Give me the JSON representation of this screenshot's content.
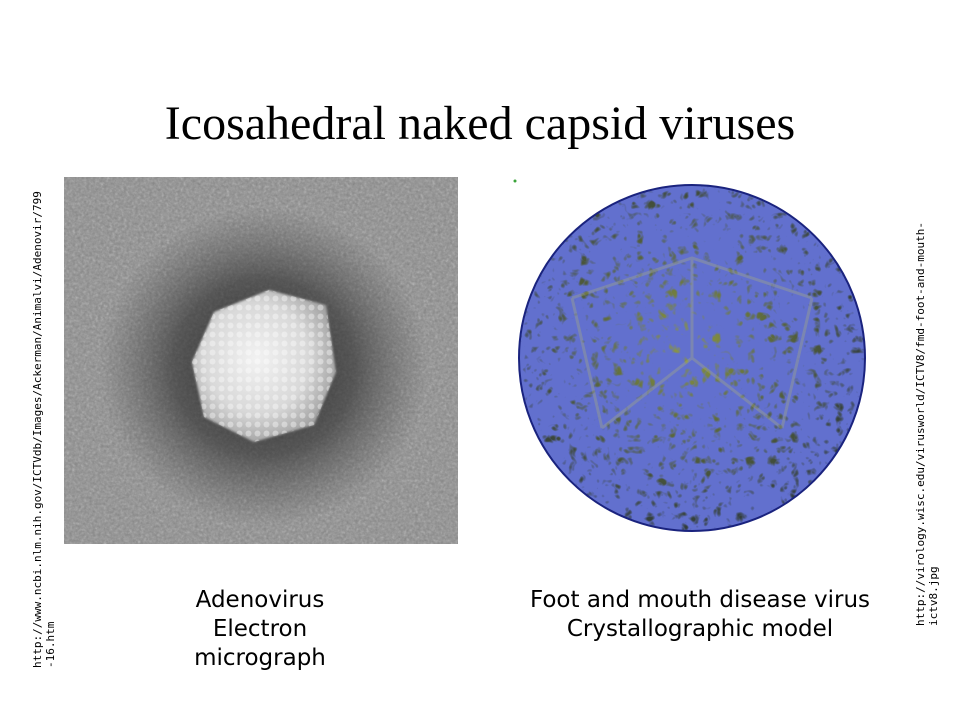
{
  "slide": {
    "title": "Icosahedral naked capsid viruses"
  },
  "left_panel": {
    "caption_lines": [
      "Adenovirus",
      "Electron",
      "micrograph"
    ],
    "source_lines": [
      "http://www.ncbi.nlm.nih.gov/ICTVdb/Images/Ackerman/Animalvi/Adenovir/799",
      "-16.htm"
    ]
  },
  "right_panel": {
    "caption_lines": [
      "Foot and mouth disease virus",
      "Crystallographic model"
    ],
    "source_lines": [
      "http://virology.wisc.edu/virusworld/ICTV8/fmd-foot-and-mouth-",
      "ictv8.jpg"
    ]
  },
  "colors": {
    "capsid_blue": "#1e2a9a",
    "capsid_yellow": "#a7ab3c",
    "em_gray": "#7a7a7a"
  }
}
